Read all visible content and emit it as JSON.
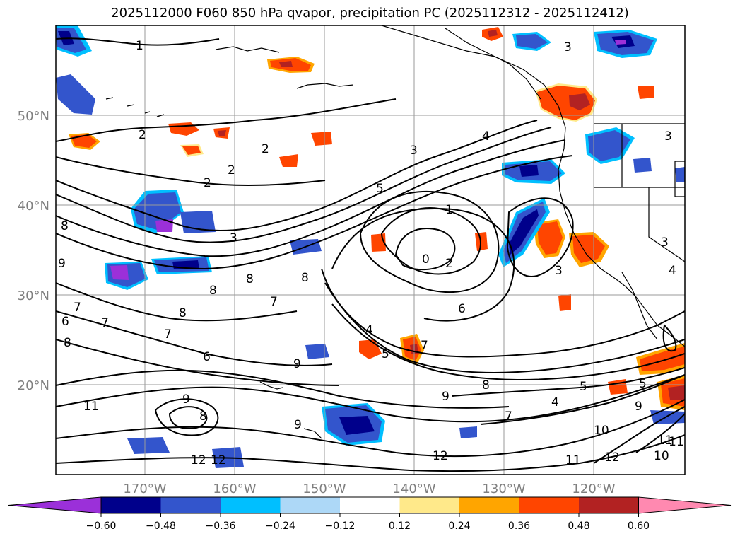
{
  "title": "2025112000 F060 850 hPa qvapor, precipitation PC (2025112312 - 2025112412)",
  "lat_labels": [
    "50°N",
    "40°N",
    "30°N",
    "20°N"
  ],
  "lon_labels": [
    "170°W",
    "160°W",
    "150°W",
    "140°W",
    "130°W",
    "120°W"
  ],
  "colorbar": {
    "ticks": [
      "−0.60",
      "−0.48",
      "−0.36",
      "−0.24",
      "−0.12",
      "0.12",
      "0.24",
      "0.36",
      "0.48",
      "0.60"
    ],
    "colors": [
      "#9b30d9",
      "#00008b",
      "#3355cc",
      "#00bfff",
      "#add8f7",
      "#ffffff",
      "#ffe98a",
      "#ffa500",
      "#ff4500",
      "#b22222",
      "#ff89b0"
    ]
  },
  "contour_labels": [
    "1",
    "2",
    "2",
    "2",
    "2",
    "3",
    "3",
    "4",
    "5",
    "1",
    "0",
    "2",
    "3",
    "4",
    "4",
    "5",
    "6",
    "7",
    "7",
    "7",
    "8",
    "8",
    "9",
    "9",
    "9",
    "9",
    "9",
    "8",
    "8",
    "10",
    "11",
    "11",
    "12",
    "12",
    "12",
    "10",
    "11",
    "7",
    "6",
    "8",
    "9",
    "7",
    "6",
    "8",
    "8",
    "3",
    "4",
    "3",
    "3",
    "5",
    "5",
    "7",
    "8",
    "11",
    "12"
  ]
}
